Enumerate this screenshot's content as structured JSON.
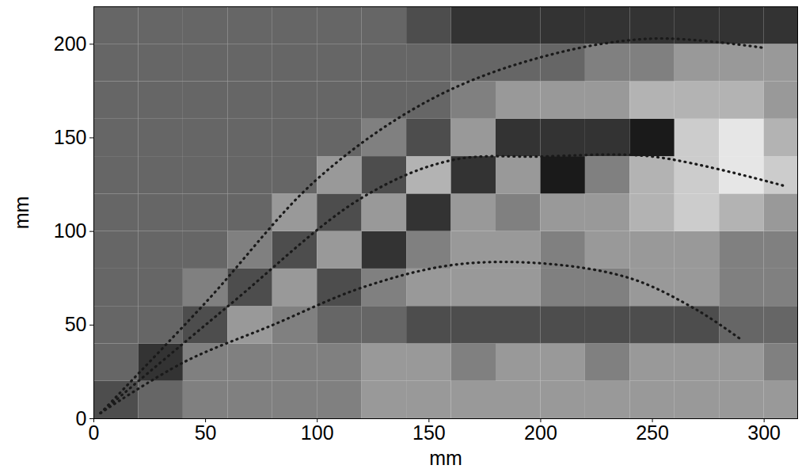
{
  "chart_data": {
    "type": "heatmap",
    "xlabel": "mm",
    "ylabel": "mm",
    "xlim": [
      0,
      315
    ],
    "ylim": [
      0,
      220
    ],
    "xticks": [
      0,
      50,
      100,
      150,
      200,
      250,
      300
    ],
    "yticks": [
      0,
      50,
      100,
      150,
      200
    ],
    "grid": false,
    "cell_range": [
      0,
      10
    ],
    "x_edges": [
      0,
      20,
      40,
      60,
      80,
      100,
      120,
      140,
      160,
      180,
      200,
      220,
      240,
      260,
      280,
      300,
      320
    ],
    "y_edges": [
      0,
      20,
      40,
      60,
      80,
      100,
      120,
      140,
      160,
      180,
      200,
      220
    ],
    "cells": [
      [
        3,
        4,
        5,
        5,
        5,
        5,
        6,
        6,
        6,
        6,
        6,
        6,
        6,
        6,
        6,
        6
      ],
      [
        4,
        2,
        5,
        5,
        5,
        5,
        6,
        6,
        5,
        6,
        6,
        5,
        6,
        6,
        6,
        5
      ],
      [
        4,
        4,
        3,
        6,
        5,
        4,
        4,
        3,
        3,
        3,
        3,
        3,
        3,
        3,
        4,
        4
      ],
      [
        4,
        4,
        5,
        3,
        6,
        3,
        5,
        6,
        6,
        6,
        5,
        5,
        6,
        6,
        5,
        5
      ],
      [
        4,
        4,
        4,
        5,
        3,
        6,
        2,
        5,
        6,
        6,
        5,
        6,
        6,
        6,
        5,
        5
      ],
      [
        4,
        4,
        4,
        4,
        6,
        3,
        6,
        2,
        6,
        5,
        6,
        6,
        7,
        8,
        7,
        6
      ],
      [
        4,
        4,
        4,
        4,
        4,
        6,
        3,
        7,
        2,
        6,
        1,
        5,
        7,
        8,
        9,
        8
      ],
      [
        4,
        4,
        4,
        4,
        4,
        4,
        5,
        3,
        6,
        2,
        2,
        2,
        1,
        8,
        9,
        7
      ],
      [
        4,
        4,
        4,
        4,
        4,
        4,
        4,
        4,
        5,
        6,
        6,
        6,
        7,
        7,
        7,
        6
      ],
      [
        4,
        4,
        4,
        4,
        4,
        4,
        4,
        4,
        4,
        4,
        4,
        5,
        5,
        6,
        6,
        6
      ],
      [
        4,
        4,
        4,
        4,
        4,
        4,
        4,
        3,
        2,
        2,
        2,
        2,
        2,
        2,
        2,
        2
      ]
    ],
    "series": [
      {
        "color": "#1a1a1a",
        "line_style": "dotted",
        "x": [
          3,
          50,
          100,
          150,
          200,
          250,
          300
        ],
        "y": [
          3,
          62,
          128,
          170,
          193,
          203,
          198
        ]
      },
      {
        "color": "#1a1a1a",
        "line_style": "dotted",
        "x": [
          3,
          60,
          120,
          160,
          200,
          250,
          310
        ],
        "y": [
          3,
          60,
          118,
          138,
          140,
          140,
          124
        ]
      },
      {
        "color": "#1a1a1a",
        "line_style": "dotted",
        "x": [
          3,
          40,
          80,
          120,
          160,
          200,
          240,
          270,
          290
        ],
        "y": [
          3,
          30,
          50,
          70,
          82,
          83,
          75,
          58,
          42
        ]
      }
    ]
  }
}
